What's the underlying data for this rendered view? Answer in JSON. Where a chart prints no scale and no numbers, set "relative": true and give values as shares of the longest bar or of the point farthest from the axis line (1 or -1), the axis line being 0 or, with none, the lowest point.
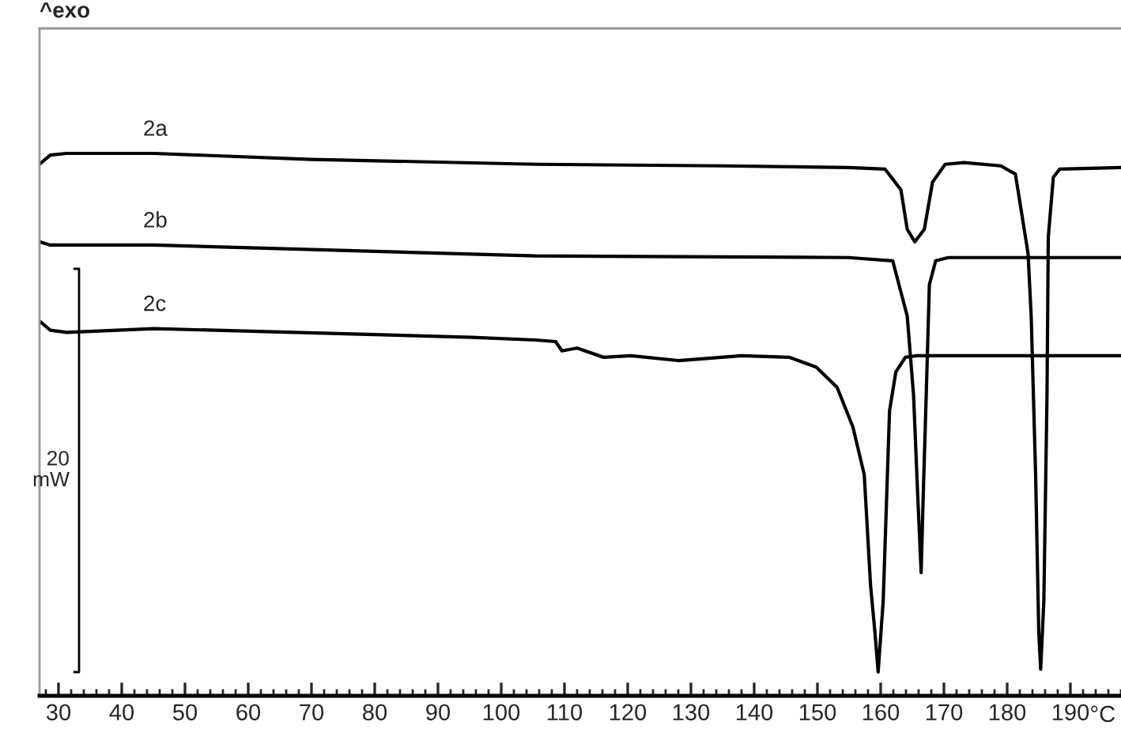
{
  "chart_data": {
    "type": "line",
    "relative": true,
    "xlabel": "°C",
    "xlim": [
      27,
      198
    ],
    "xticks": [
      30,
      40,
      50,
      60,
      70,
      80,
      90,
      100,
      110,
      120,
      130,
      140,
      150,
      160,
      170,
      180,
      190
    ],
    "grid": false,
    "legend": false,
    "marker": "none",
    "line_style": "solid",
    "tick_labels": "x",
    "annotations": [
      "^exo",
      "20\nmW"
    ],
    "series": [
      {
        "name": "2a",
        "color": "#000000",
        "x": [
          27.0,
          28.7,
          31.3,
          45.1,
          70,
          105.4,
          134.8,
          154.9,
          160.7,
          163.2,
          164.2,
          165.4,
          166.9,
          168.2,
          170.2,
          173.2,
          179,
          181.3,
          183.3,
          183.8,
          184.5,
          185.0,
          185.3,
          185.8,
          186.3,
          186.5,
          187.3,
          188.3,
          198
        ],
        "values": [
          0.98,
          0.997,
          1.0,
          1.0,
          0.989,
          0.98,
          0.977,
          0.974,
          0.971,
          0.933,
          0.86,
          0.837,
          0.86,
          0.947,
          0.98,
          0.983,
          0.977,
          0.962,
          0.816,
          0.7,
          0.408,
          0.116,
          0.049,
          0.175,
          0.554,
          0.845,
          0.956,
          0.971,
          0.974
        ]
      },
      {
        "name": "2b",
        "color": "#000000",
        "x": [
          27.0,
          28.7,
          45.1,
          105.4,
          154.9,
          161.9,
          164.2,
          165.2,
          165.9,
          166.4,
          166.7,
          167.2,
          167.7,
          168.7,
          170.7,
          198
        ],
        "values": [
          0.837,
          0.831,
          0.831,
          0.811,
          0.808,
          0.802,
          0.7,
          0.554,
          0.358,
          0.227,
          0.358,
          0.554,
          0.758,
          0.802,
          0.808,
          0.808
        ]
      },
      {
        "name": "2c",
        "color": "#000000",
        "x": [
          27.0,
          28.7,
          31.3,
          45.1,
          95.3,
          105.4,
          108.6,
          109.6,
          112,
          116.2,
          120.5,
          128,
          138,
          145.6,
          149.8,
          153.1,
          155.6,
          157.4,
          158.4,
          159.1,
          159.6,
          160.4,
          160.9,
          161.4,
          162.4,
          163.9,
          165.7,
          198
        ],
        "values": [
          0.691,
          0.674,
          0.67,
          0.677,
          0.661,
          0.656,
          0.653,
          0.636,
          0.641,
          0.624,
          0.627,
          0.618,
          0.627,
          0.624,
          0.606,
          0.569,
          0.496,
          0.408,
          0.204,
          0.116,
          0.044,
          0.175,
          0.35,
          0.525,
          0.597,
          0.624,
          0.627,
          0.627
        ]
      }
    ]
  }
}
